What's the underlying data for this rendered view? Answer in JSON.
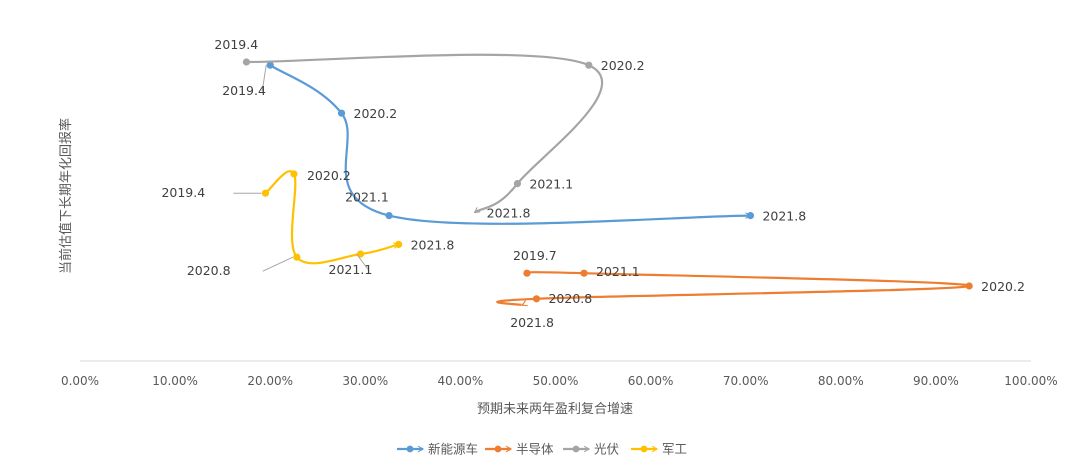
{
  "chart_data": {
    "type": "scatter",
    "xlabel": "预期未来两年盈利复合增速",
    "ylabel": "当前估值下长期年化回报率",
    "x_ticks": [
      "0.00%",
      "10.00%",
      "20.00%",
      "30.00%",
      "40.00%",
      "50.00%",
      "60.00%",
      "70.00%",
      "80.00%",
      "90.00%",
      "100.00%"
    ],
    "xlim": [
      0,
      1.0
    ],
    "ylim": [
      0,
      1.0
    ],
    "y_axis_tick_labels_shown": false,
    "gridlines": false,
    "legend_position": "bottom",
    "series": [
      {
        "name": "新能源车",
        "color": "#5B9BD5",
        "points": [
          {
            "x": 0.2,
            "y": 0.89,
            "label": "2019.4"
          },
          {
            "x": 0.275,
            "y": 0.74,
            "label": "2020.2"
          },
          {
            "x": 0.325,
            "y": 0.42,
            "label": "2021.1"
          },
          {
            "x": 0.705,
            "y": 0.42,
            "label": "2021.8"
          }
        ]
      },
      {
        "name": "半导体",
        "color": "#ED7D31",
        "points": [
          {
            "x": 0.47,
            "y": 0.24,
            "label": "2019.7"
          },
          {
            "x": 0.53,
            "y": 0.24,
            "label": "2021.1"
          },
          {
            "x": 0.935,
            "y": 0.2,
            "label": "2020.2"
          },
          {
            "x": 0.48,
            "y": 0.16,
            "label": "2020.8"
          },
          {
            "x": 0.465,
            "y": 0.14,
            "label": "2021.8"
          }
        ]
      },
      {
        "name": "光伏",
        "color": "#A5A5A5",
        "points": [
          {
            "x": 0.175,
            "y": 0.9,
            "label": "2019.4"
          },
          {
            "x": 0.535,
            "y": 0.89,
            "label": "2020.2"
          },
          {
            "x": 0.46,
            "y": 0.52,
            "label": "2021.1"
          },
          {
            "x": 0.415,
            "y": 0.43,
            "label": "2021.8"
          }
        ]
      },
      {
        "name": "军工",
        "color": "#FFC000",
        "points": [
          {
            "x": 0.195,
            "y": 0.49,
            "label": "2019.4"
          },
          {
            "x": 0.225,
            "y": 0.55,
            "label": "2020.2"
          },
          {
            "x": 0.228,
            "y": 0.29,
            "label": "2020.8"
          },
          {
            "x": 0.295,
            "y": 0.3,
            "label": "2021.1"
          },
          {
            "x": 0.335,
            "y": 0.33,
            "label": "2021.8"
          }
        ]
      }
    ]
  }
}
